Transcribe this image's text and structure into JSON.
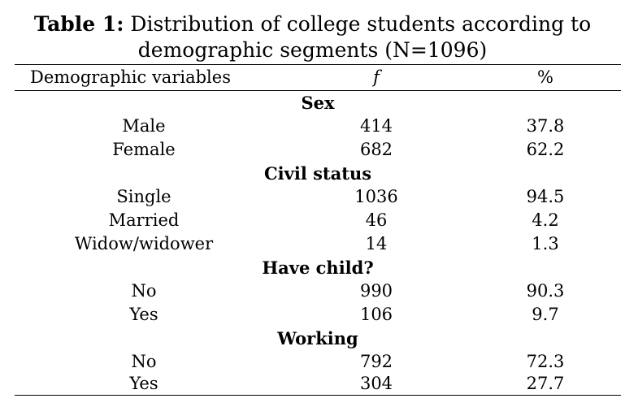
{
  "caption": {
    "label": "Table 1:",
    "text_line1": " Distribution of college students according to",
    "text_line2": "demographic segments (N=1096)"
  },
  "header": {
    "variable": "Demographic variables",
    "f": "f",
    "pct": "%"
  },
  "groups": [
    {
      "title": "Sex",
      "rows": [
        {
          "label": "Male",
          "f": "414",
          "pct": "37.8"
        },
        {
          "label": "Female",
          "f": "682",
          "pct": "62.2"
        }
      ]
    },
    {
      "title": "Civil status",
      "rows": [
        {
          "label": "Single",
          "f": "1036",
          "pct": "94.5"
        },
        {
          "label": "Married",
          "f": "46",
          "pct": "4.2"
        },
        {
          "label": "Widow/widower",
          "f": "14",
          "pct": "1.3"
        }
      ]
    },
    {
      "title": "Have child?",
      "rows": [
        {
          "label": "No",
          "f": "990",
          "pct": "90.3"
        },
        {
          "label": "Yes",
          "f": "106",
          "pct": "9.7"
        }
      ]
    },
    {
      "title": "Working",
      "rows": [
        {
          "label": "No",
          "f": "792",
          "pct": "72.3"
        },
        {
          "label": "Yes",
          "f": "304",
          "pct": "27.7"
        }
      ]
    }
  ]
}
